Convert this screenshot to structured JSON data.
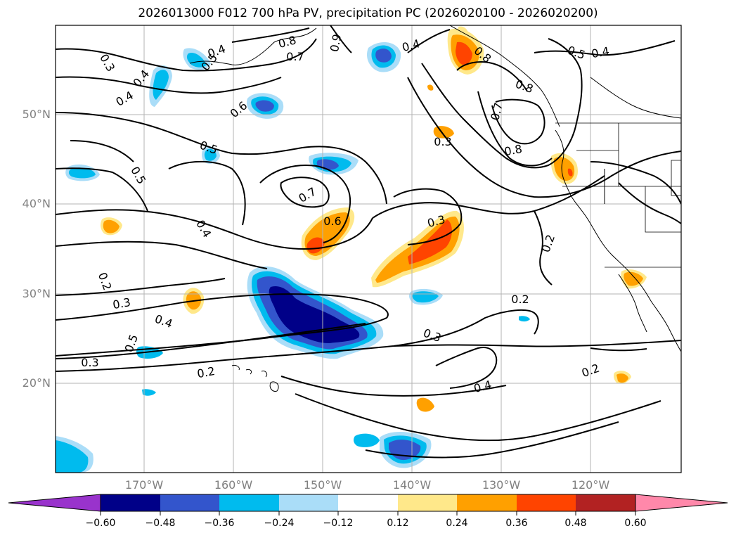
{
  "title": "2026013000 F012 700 hPa PV, precipitation PC (2026020100 - 2026020200)",
  "map": {
    "lat_labels": [
      "50°N",
      "40°N",
      "30°N",
      "20°N"
    ],
    "lon_labels": [
      "170°W",
      "160°W",
      "150°W",
      "140°W",
      "130°W",
      "120°W"
    ],
    "contour_labels": [
      "0.3",
      "0.4",
      "0.4",
      "0.7",
      "0.8",
      "0.9",
      "0.4",
      "0.5",
      "0.4",
      "0.6",
      "0.5",
      "0.5",
      "0.7",
      "0.6",
      "0.3",
      "0.4",
      "0.3",
      "0.8",
      "0.7",
      "0.8",
      "0.8",
      "0.5",
      "0.4",
      "0.2",
      "0.2",
      "0.3",
      "0.4",
      "0.5",
      "0.3",
      "0.2",
      "0.3",
      "0.2",
      "0.4",
      "0.2"
    ]
  },
  "colorbar": {
    "ticks": [
      "−0.60",
      "−0.48",
      "−0.36",
      "−0.24",
      "−0.12",
      "0.12",
      "0.24",
      "0.36",
      "0.48",
      "0.60"
    ],
    "colors": [
      "#9933cc",
      "#000088",
      "#3355cc",
      "#00bbee",
      "#aaddf8",
      "#ffffff",
      "#ffe88a",
      "#ffa000",
      "#ff4400",
      "#b22222",
      "#ff88aa"
    ]
  }
}
